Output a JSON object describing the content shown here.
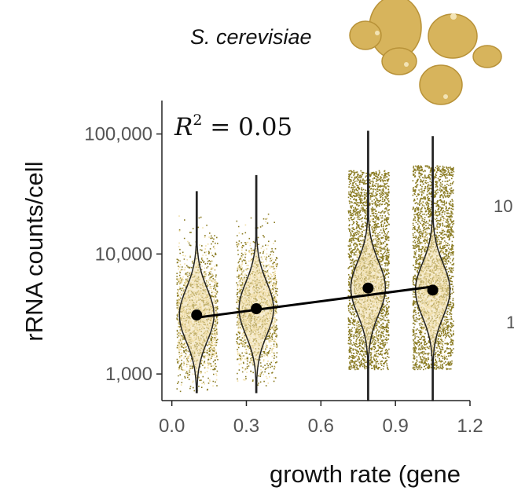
{
  "chart_data": {
    "type": "scatter",
    "title": "S. cerevisiae",
    "xlabel": "growth rate (gene",
    "ylabel": "rRNA counts/cell",
    "annotation": {
      "r2_label": "R",
      "r2_sup": "2",
      "r2_rest": " = 0.05",
      "r2_value": 0.05
    },
    "scale": {
      "y": "log"
    },
    "xlim": [
      -0.04,
      1.2
    ],
    "ylim": [
      600,
      190000
    ],
    "x_ticks": [
      0.0,
      0.3,
      0.6,
      0.9,
      1.2
    ],
    "x_tick_labels": [
      "0.0",
      "0.3",
      "0.6",
      "0.9",
      "1.2"
    ],
    "y_ticks": [
      1000,
      10000,
      100000
    ],
    "y_tick_labels": [
      "1,000",
      "10,000",
      "100,000"
    ],
    "groups": [
      {
        "x": 0.1,
        "mean": 3100,
        "violin_min": 700,
        "violin_max": 33000,
        "scatter_low": 700,
        "scatter_high": 22000,
        "density": "light"
      },
      {
        "x": 0.34,
        "mean": 3500,
        "violin_min": 700,
        "violin_max": 45000,
        "scatter_low": 800,
        "scatter_high": 24000,
        "density": "light"
      },
      {
        "x": 0.79,
        "mean": 5200,
        "violin_min": 600,
        "violin_max": 105000,
        "scatter_low": 1100,
        "scatter_high": 50000,
        "density": "dense"
      },
      {
        "x": 1.05,
        "mean": 5000,
        "violin_min": 600,
        "violin_max": 95000,
        "scatter_low": 1100,
        "scatter_high": 55000,
        "density": "dense"
      }
    ],
    "trend_line": {
      "x": [
        0.1,
        1.05
      ],
      "y": [
        2950,
        5350
      ]
    },
    "grid": false,
    "colors": {
      "points_dark": "#8a7b22",
      "points_light": "#f1dfa8",
      "violin_fill": "#efdcaa",
      "violin_stroke": "#222222",
      "mean_point": "#000000",
      "axis": "#222222",
      "tick_label": "#555555",
      "yeast": "#d7b45c",
      "yeast_edge": "#b89238"
    }
  },
  "right_panel_clip": {
    "tick_top": "10",
    "tick_bottom": "1"
  },
  "decoration": {
    "icon": "yeast-cells-icon"
  }
}
